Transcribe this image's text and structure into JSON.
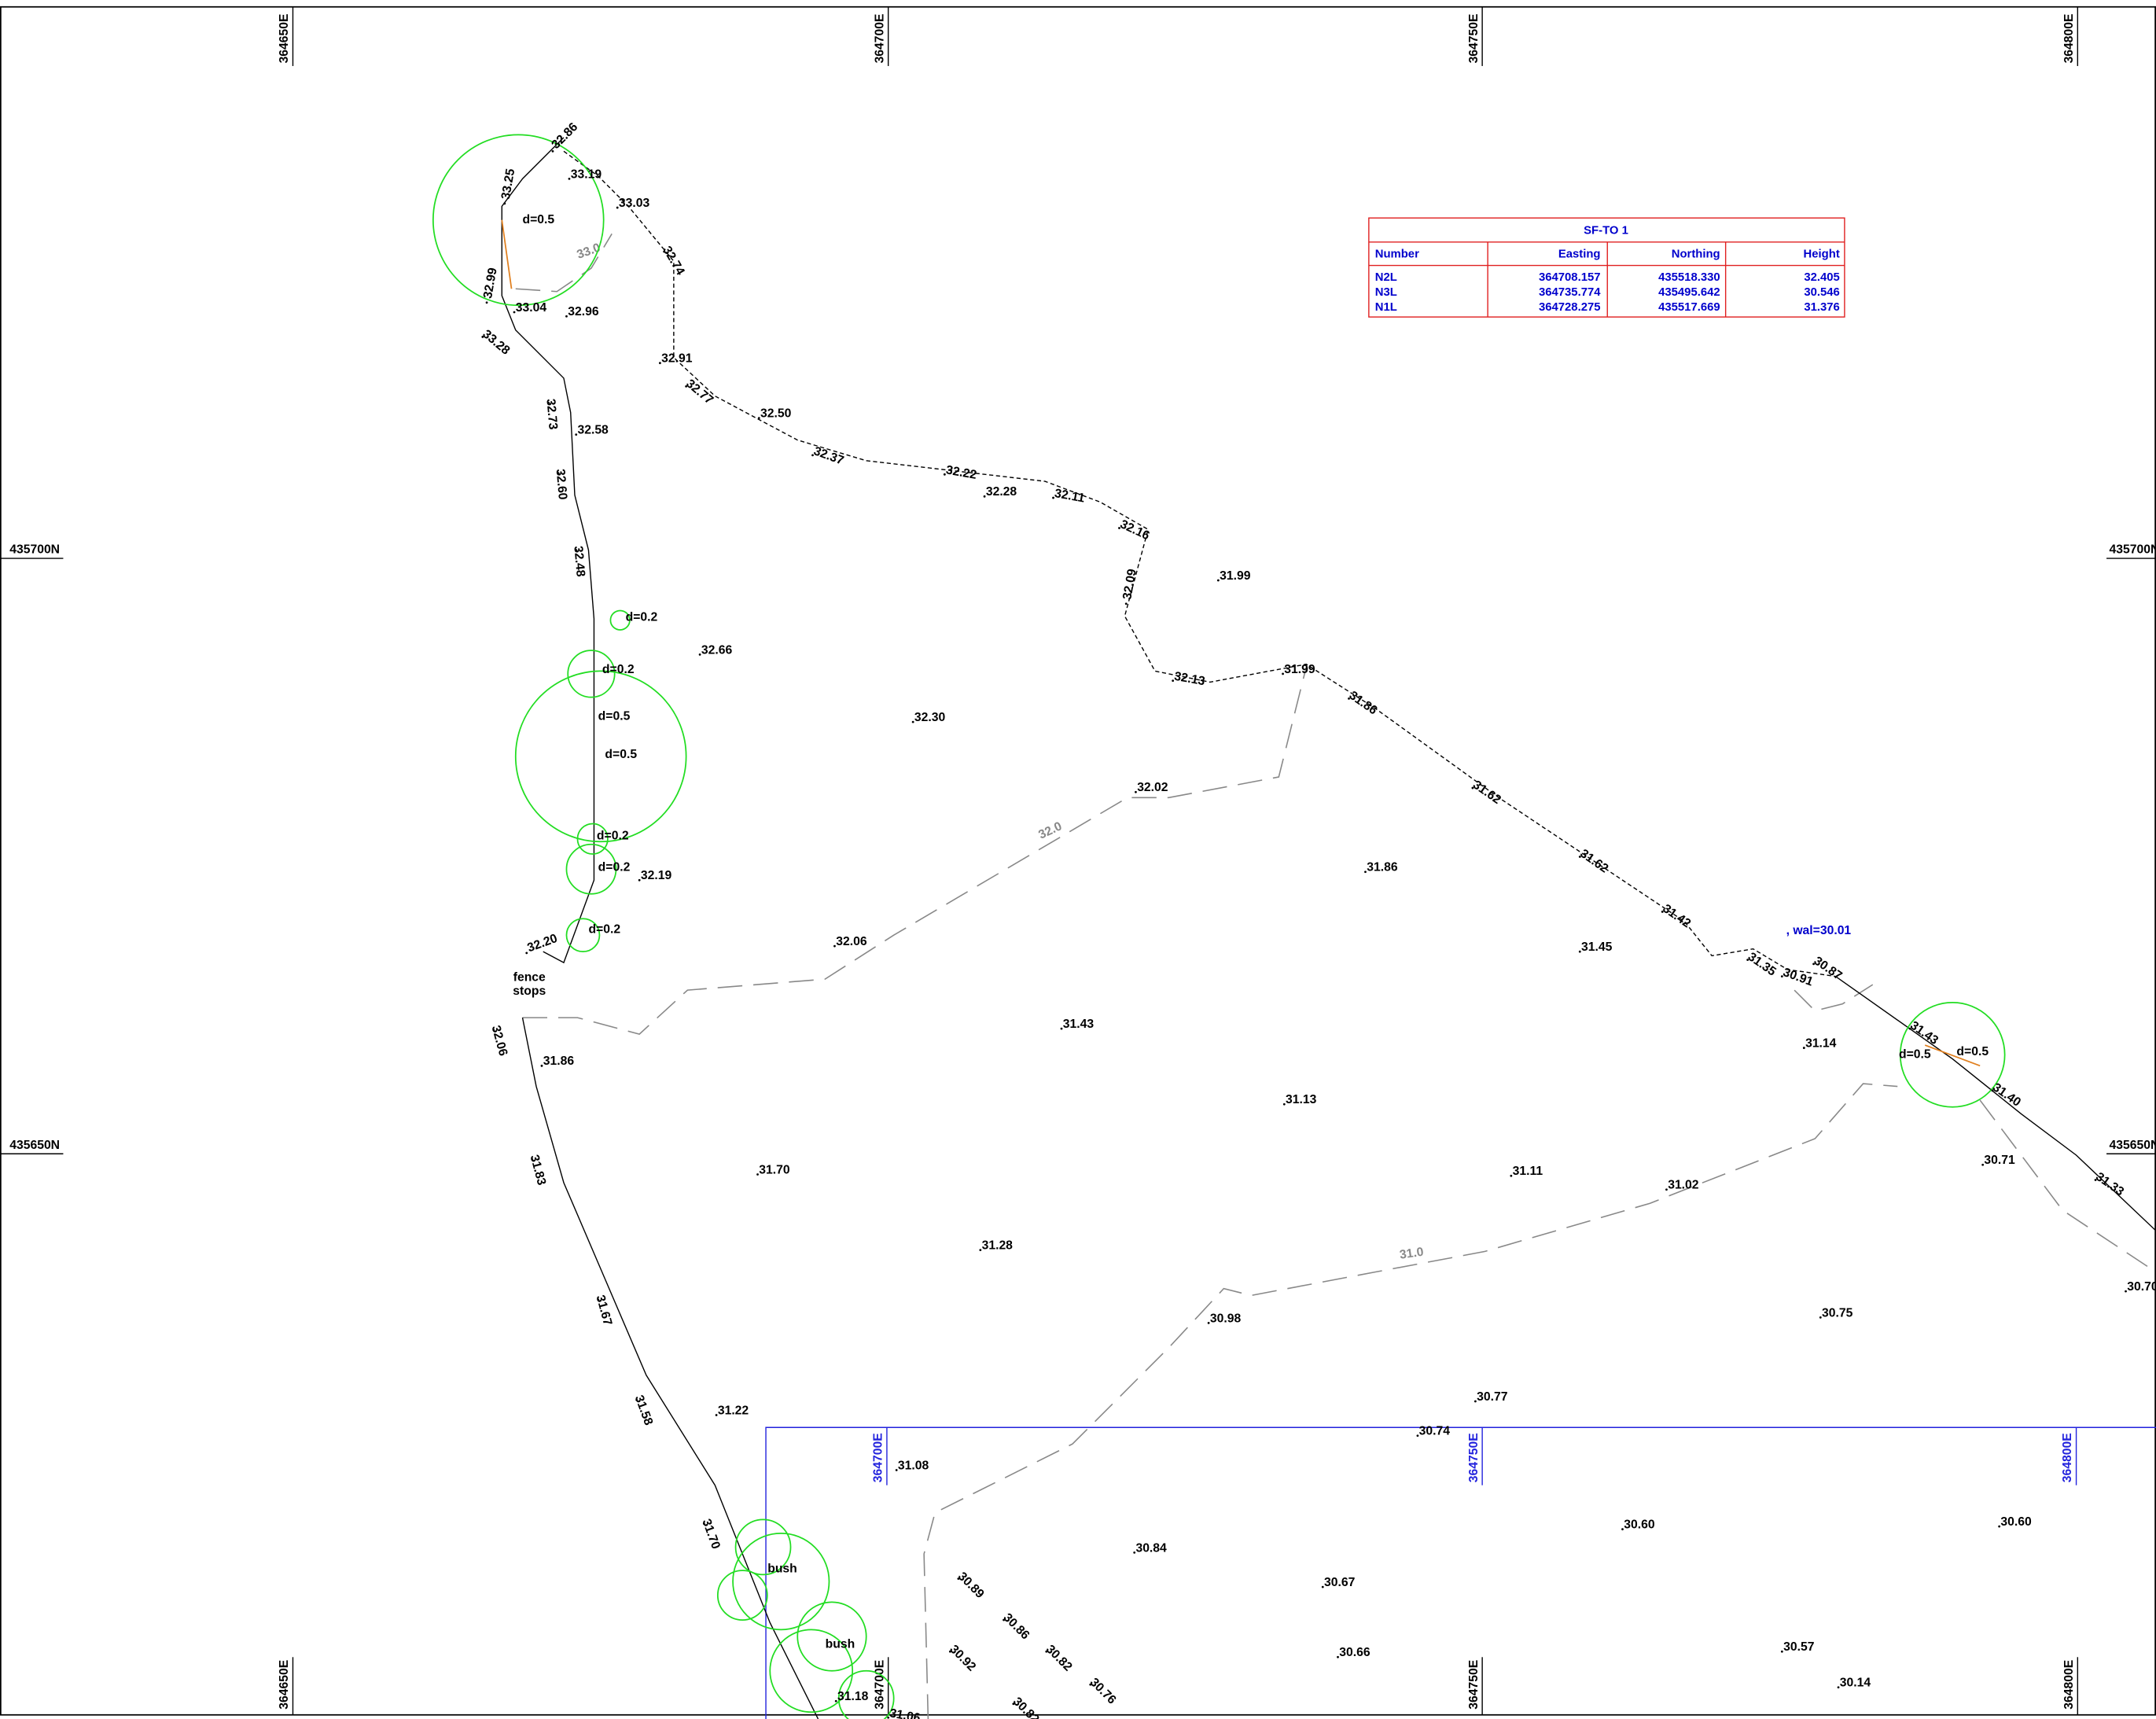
{
  "grid": {
    "eastings": [
      "364650E",
      "364700E",
      "364750E",
      "364800E"
    ],
    "northings": [
      "435700N",
      "435650N"
    ],
    "inset_eastings": [
      "364700E",
      "364750E",
      "364800E"
    ]
  },
  "table": {
    "title": "SF-TO  1",
    "headers": [
      "Number",
      "Easting",
      "Northing",
      "Height"
    ],
    "rows": [
      [
        "N2L",
        "364708.157",
        "435518.330",
        "32.405"
      ],
      [
        "N3L",
        "364735.774",
        "435495.642",
        "30.546"
      ],
      [
        "N1L",
        "364728.275",
        "435517.669",
        "31.376"
      ]
    ]
  },
  "levels": [
    "32.86",
    "33.19",
    "33.03",
    "33.25",
    "32.74",
    "32.99",
    "33.04",
    "32.96",
    "33.28",
    "32.91",
    "32.77",
    "32.73",
    "32.50",
    "32.58",
    "32.37",
    "32.60",
    "32.22",
    "32.28",
    "32.11",
    "32.16",
    "32.48",
    "31.99",
    "32.09",
    "32.66",
    "32.13",
    "31.99",
    "31.86",
    "32.30",
    "32.02",
    "31.62",
    "31.62",
    "31.86",
    "32.19",
    "31.42",
    "32.20",
    "32.06",
    "31.45",
    "31.35",
    "30.87",
    "30.91",
    "32.06",
    "31.43",
    "31.43",
    "31.14",
    "31.86",
    "31.40",
    "31.13",
    "31.83",
    "30.71",
    "31.33",
    "31.70",
    "31.11",
    "31.02",
    "31.28",
    "31.67",
    "30.70",
    "30.98",
    "30.75",
    "31.58",
    "30.77",
    "31.22",
    "30.74",
    "31.08",
    "31.70",
    "30.60",
    "30.60",
    "30.84",
    "30.89",
    "30.67",
    "30.86",
    "30.82",
    "30.57",
    "30.92",
    "30.66",
    "30.76",
    "31.18",
    "30.14",
    "30.82",
    "31.06"
  ],
  "trees": [
    "d=0.5",
    "d=0.2",
    "d=0.2",
    "d=0.5",
    "d=0.5",
    "d=0.2",
    "d=0.2",
    "d=0.2",
    "d=0.5",
    "d=0.5"
  ],
  "contours": [
    "33.0",
    "32.0",
    "31.0"
  ],
  "notes": {
    "fence": [
      "fence",
      "stops"
    ],
    "water_level": ", wal=30.01",
    "bushes": [
      "bush",
      "bush"
    ]
  }
}
